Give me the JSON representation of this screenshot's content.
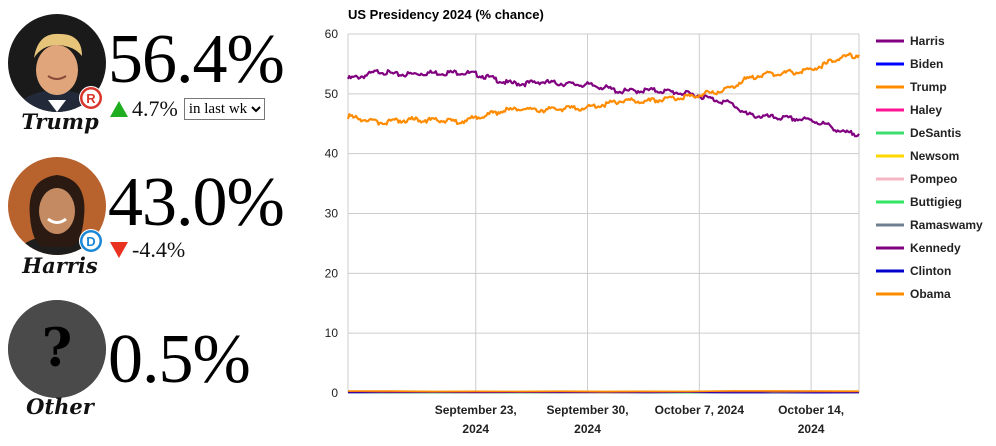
{
  "candidates": [
    {
      "name": "Trump",
      "percent": "56.4%",
      "change": "4.7%",
      "direction": "up",
      "party_letter": "R",
      "party_color": "#d9352a",
      "avatar_icon": "trump-portrait"
    },
    {
      "name": "Harris",
      "percent": "43.0%",
      "change": "-4.4%",
      "direction": "down",
      "party_letter": "D",
      "party_color": "#1a87d6",
      "avatar_icon": "harris-portrait"
    },
    {
      "name": "Other",
      "percent": "0.5%",
      "avatar_symbol": "?",
      "avatar_icon": "question-mark-icon"
    }
  ],
  "period_select": {
    "selected": "in last wk"
  },
  "chart_data": {
    "type": "line",
    "title": "US Presidency 2024 (% chance)",
    "xlabel": "",
    "ylabel": "",
    "ylim": [
      0,
      60
    ],
    "y_ticks": [
      0,
      10,
      20,
      30,
      40,
      50,
      60
    ],
    "x_range": [
      "2024-09-15",
      "2024-10-17"
    ],
    "x_ticks": [
      {
        "date": "2024-09-23",
        "line1": "September 23,",
        "line2": "2024"
      },
      {
        "date": "2024-09-30",
        "line1": "September 30,",
        "line2": "2024"
      },
      {
        "date": "2024-10-07",
        "line1": "October 7, 2024",
        "line2": ""
      },
      {
        "date": "2024-10-14",
        "line1": "October 14,",
        "line2": "2024"
      }
    ],
    "grid": true,
    "legend_position": "right",
    "series": [
      {
        "name": "Harris",
        "color": "#800080",
        "points": [
          [
            "2024-09-15",
            52.5
          ],
          [
            "2024-09-16",
            53.0
          ],
          [
            "2024-09-17",
            53.8
          ],
          [
            "2024-09-18",
            53.2
          ],
          [
            "2024-09-19",
            53.3
          ],
          [
            "2024-09-20",
            53.5
          ],
          [
            "2024-09-21",
            53.5
          ],
          [
            "2024-09-22",
            53.6
          ],
          [
            "2024-09-23",
            53.3
          ],
          [
            "2024-09-24",
            52.6
          ],
          [
            "2024-09-25",
            51.8
          ],
          [
            "2024-09-26",
            51.7
          ],
          [
            "2024-09-27",
            52.0
          ],
          [
            "2024-09-28",
            51.8
          ],
          [
            "2024-09-29",
            51.6
          ],
          [
            "2024-09-30",
            51.5
          ],
          [
            "2024-10-01",
            51.1
          ],
          [
            "2024-10-02",
            50.4
          ],
          [
            "2024-10-03",
            50.5
          ],
          [
            "2024-10-04",
            50.6
          ],
          [
            "2024-10-05",
            50.4
          ],
          [
            "2024-10-06",
            50.1
          ],
          [
            "2024-10-07",
            49.7
          ],
          [
            "2024-10-08",
            49.0
          ],
          [
            "2024-10-09",
            48.4
          ],
          [
            "2024-10-10",
            46.5
          ],
          [
            "2024-10-11",
            46.2
          ],
          [
            "2024-10-12",
            46.0
          ],
          [
            "2024-10-13",
            45.8
          ],
          [
            "2024-10-14",
            45.6
          ],
          [
            "2024-10-15",
            44.8
          ],
          [
            "2024-10-16",
            43.5
          ],
          [
            "2024-10-17",
            43.3
          ]
        ]
      },
      {
        "name": "Biden",
        "color": "#0000ff",
        "points": [
          [
            "2024-09-15",
            0.1
          ],
          [
            "2024-10-17",
            0.1
          ]
        ]
      },
      {
        "name": "Trump",
        "color": "#ff8c00",
        "points": [
          [
            "2024-09-15",
            46.2
          ],
          [
            "2024-09-16",
            45.7
          ],
          [
            "2024-09-17",
            45.2
          ],
          [
            "2024-09-18",
            45.5
          ],
          [
            "2024-09-19",
            45.7
          ],
          [
            "2024-09-20",
            45.6
          ],
          [
            "2024-09-21",
            45.5
          ],
          [
            "2024-09-22",
            45.4
          ],
          [
            "2024-09-23",
            46.0
          ],
          [
            "2024-09-24",
            46.7
          ],
          [
            "2024-09-25",
            47.3
          ],
          [
            "2024-09-26",
            47.5
          ],
          [
            "2024-09-27",
            47.3
          ],
          [
            "2024-09-28",
            47.4
          ],
          [
            "2024-09-29",
            47.6
          ],
          [
            "2024-09-30",
            47.7
          ],
          [
            "2024-10-01",
            48.2
          ],
          [
            "2024-10-02",
            48.8
          ],
          [
            "2024-10-03",
            48.9
          ],
          [
            "2024-10-04",
            48.8
          ],
          [
            "2024-10-05",
            49.1
          ],
          [
            "2024-10-06",
            49.4
          ],
          [
            "2024-10-07",
            49.9
          ],
          [
            "2024-10-08",
            50.3
          ],
          [
            "2024-10-09",
            51.1
          ],
          [
            "2024-10-10",
            52.6
          ],
          [
            "2024-10-11",
            53.2
          ],
          [
            "2024-10-12",
            53.5
          ],
          [
            "2024-10-13",
            53.6
          ],
          [
            "2024-10-14",
            54.0
          ],
          [
            "2024-10-15",
            55.1
          ],
          [
            "2024-10-16",
            56.2
          ],
          [
            "2024-10-17",
            56.5
          ]
        ]
      },
      {
        "name": "Haley",
        "color": "#ff1493",
        "points": [
          [
            "2024-09-15",
            0.1
          ],
          [
            "2024-10-17",
            0.1
          ]
        ]
      },
      {
        "name": "DeSantis",
        "color": "#3cdc6e",
        "points": [
          [
            "2024-09-15",
            0.1
          ],
          [
            "2024-10-17",
            0.1
          ]
        ]
      },
      {
        "name": "Newsom",
        "color": "#ffd700",
        "points": [
          [
            "2024-09-15",
            0.2
          ],
          [
            "2024-10-17",
            0.2
          ]
        ]
      },
      {
        "name": "Pompeo",
        "color": "#f4b6c2",
        "points": [
          [
            "2024-09-15",
            0.1
          ],
          [
            "2024-10-17",
            0.1
          ]
        ]
      },
      {
        "name": "Buttigieg",
        "color": "#32e664",
        "points": [
          [
            "2024-09-15",
            0.1
          ],
          [
            "2024-10-17",
            0.1
          ]
        ]
      },
      {
        "name": "Ramaswamy",
        "color": "#708090",
        "points": [
          [
            "2024-09-15",
            0.1
          ],
          [
            "2024-10-17",
            0.1
          ]
        ]
      },
      {
        "name": "Kennedy",
        "color": "#800080",
        "points": [
          [
            "2024-09-15",
            0.2
          ],
          [
            "2024-10-17",
            0.2
          ]
        ]
      },
      {
        "name": "Clinton",
        "color": "#0000cd",
        "points": [
          [
            "2024-09-15",
            0.1
          ],
          [
            "2024-10-17",
            0.1
          ]
        ]
      },
      {
        "name": "Obama",
        "color": "#ff8c00",
        "points": [
          [
            "2024-09-15",
            0.3
          ],
          [
            "2024-10-17",
            0.3
          ]
        ]
      }
    ]
  }
}
